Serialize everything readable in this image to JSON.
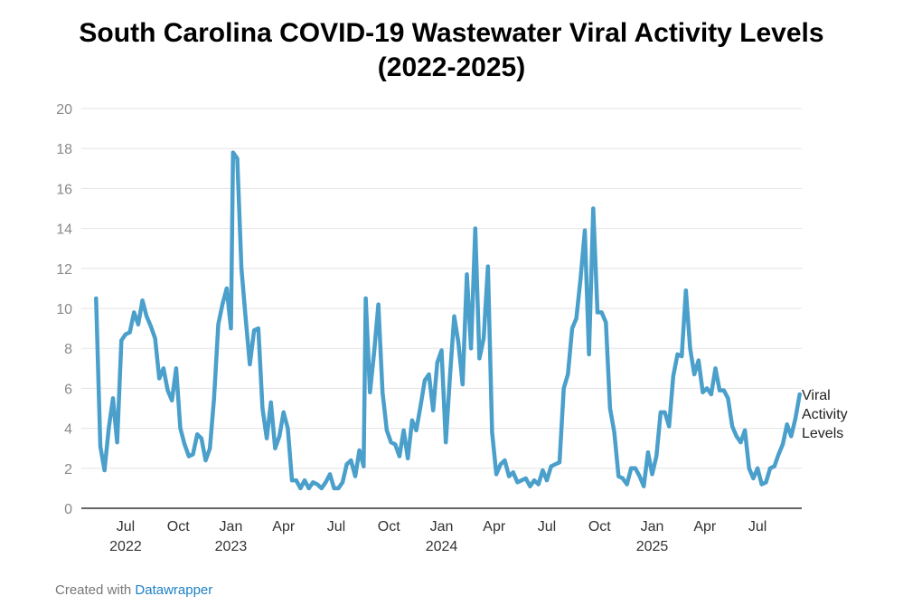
{
  "chart_data": {
    "type": "line",
    "title_lines": [
      "South Carolina COVID-19  Wastewater Viral Activity Levels",
      "(2022-2025)"
    ],
    "xlabel": "",
    "ylabel": "",
    "ylim": [
      0,
      20
    ],
    "yticks": [
      0,
      2,
      4,
      6,
      8,
      10,
      12,
      14,
      16,
      18,
      20
    ],
    "xlim": [
      2022.29,
      2025.71
    ],
    "x_ticks": [
      {
        "label": "Jul",
        "year": "2022",
        "x": 2022.5
      },
      {
        "label": "Oct",
        "year": "",
        "x": 2022.75
      },
      {
        "label": "Jan",
        "year": "2023",
        "x": 2023.0
      },
      {
        "label": "Apr",
        "year": "",
        "x": 2023.25
      },
      {
        "label": "Jul",
        "year": "",
        "x": 2023.5
      },
      {
        "label": "Oct",
        "year": "",
        "x": 2023.75
      },
      {
        "label": "Jan",
        "year": "2024",
        "x": 2024.0
      },
      {
        "label": "Apr",
        "year": "",
        "x": 2024.25
      },
      {
        "label": "Jul",
        "year": "",
        "x": 2024.5
      },
      {
        "label": "Oct",
        "year": "",
        "x": 2024.75
      },
      {
        "label": "Jan",
        "year": "2025",
        "x": 2025.0
      },
      {
        "label": "Apr",
        "year": "",
        "x": 2025.25
      },
      {
        "label": "Jul",
        "year": "",
        "x": 2025.5
      }
    ],
    "grid": true,
    "series": [
      {
        "name": "Viral Activity Levels",
        "legend_lines": [
          "Viral",
          "Activity",
          "Levels"
        ],
        "color": "#4a9fcb",
        "points": [
          [
            2022.36,
            10.5
          ],
          [
            2022.38,
            3.1
          ],
          [
            2022.4,
            1.9
          ],
          [
            2022.42,
            4.0
          ],
          [
            2022.44,
            5.5
          ],
          [
            2022.46,
            3.3
          ],
          [
            2022.48,
            8.4
          ],
          [
            2022.5,
            8.7
          ],
          [
            2022.52,
            8.8
          ],
          [
            2022.54,
            9.8
          ],
          [
            2022.56,
            9.2
          ],
          [
            2022.58,
            10.4
          ],
          [
            2022.6,
            9.6
          ],
          [
            2022.62,
            9.1
          ],
          [
            2022.64,
            8.5
          ],
          [
            2022.66,
            6.5
          ],
          [
            2022.68,
            7.0
          ],
          [
            2022.7,
            5.9
          ],
          [
            2022.72,
            5.4
          ],
          [
            2022.74,
            7.0
          ],
          [
            2022.76,
            4.0
          ],
          [
            2022.78,
            3.2
          ],
          [
            2022.8,
            2.6
          ],
          [
            2022.82,
            2.7
          ],
          [
            2022.84,
            3.7
          ],
          [
            2022.86,
            3.5
          ],
          [
            2022.88,
            2.4
          ],
          [
            2022.9,
            3.0
          ],
          [
            2022.92,
            5.5
          ],
          [
            2022.94,
            9.2
          ],
          [
            2022.96,
            10.2
          ],
          [
            2022.98,
            11.0
          ],
          [
            2023.0,
            9.0
          ],
          [
            2023.01,
            17.8
          ],
          [
            2023.03,
            17.5
          ],
          [
            2023.05,
            12.0
          ],
          [
            2023.07,
            9.5
          ],
          [
            2023.09,
            7.2
          ],
          [
            2023.11,
            8.9
          ],
          [
            2023.13,
            9.0
          ],
          [
            2023.15,
            5.0
          ],
          [
            2023.17,
            3.5
          ],
          [
            2023.19,
            5.3
          ],
          [
            2023.21,
            3.0
          ],
          [
            2023.23,
            3.6
          ],
          [
            2023.25,
            4.8
          ],
          [
            2023.27,
            4.0
          ],
          [
            2023.29,
            1.4
          ],
          [
            2023.31,
            1.4
          ],
          [
            2023.33,
            1.0
          ],
          [
            2023.35,
            1.4
          ],
          [
            2023.37,
            1.0
          ],
          [
            2023.39,
            1.3
          ],
          [
            2023.41,
            1.2
          ],
          [
            2023.43,
            1.0
          ],
          [
            2023.45,
            1.3
          ],
          [
            2023.47,
            1.7
          ],
          [
            2023.49,
            1.0
          ],
          [
            2023.51,
            1.0
          ],
          [
            2023.53,
            1.3
          ],
          [
            2023.55,
            2.2
          ],
          [
            2023.57,
            2.4
          ],
          [
            2023.59,
            1.6
          ],
          [
            2023.61,
            2.9
          ],
          [
            2023.63,
            2.1
          ],
          [
            2023.64,
            10.5
          ],
          [
            2023.66,
            5.8
          ],
          [
            2023.68,
            7.8
          ],
          [
            2023.7,
            10.2
          ],
          [
            2023.72,
            5.8
          ],
          [
            2023.74,
            3.9
          ],
          [
            2023.76,
            3.3
          ],
          [
            2023.78,
            3.2
          ],
          [
            2023.8,
            2.6
          ],
          [
            2023.82,
            3.9
          ],
          [
            2023.84,
            2.5
          ],
          [
            2023.86,
            4.4
          ],
          [
            2023.88,
            3.9
          ],
          [
            2023.9,
            5.1
          ],
          [
            2023.92,
            6.4
          ],
          [
            2023.94,
            6.7
          ],
          [
            2023.96,
            4.9
          ],
          [
            2023.98,
            7.3
          ],
          [
            2024.0,
            7.9
          ],
          [
            2024.02,
            3.3
          ],
          [
            2024.04,
            6.6
          ],
          [
            2024.06,
            9.6
          ],
          [
            2024.08,
            8.3
          ],
          [
            2024.1,
            6.2
          ],
          [
            2024.12,
            11.7
          ],
          [
            2024.14,
            8.0
          ],
          [
            2024.16,
            14.0
          ],
          [
            2024.18,
            7.5
          ],
          [
            2024.2,
            8.5
          ],
          [
            2024.22,
            12.1
          ],
          [
            2024.24,
            3.8
          ],
          [
            2024.26,
            1.7
          ],
          [
            2024.28,
            2.2
          ],
          [
            2024.3,
            2.4
          ],
          [
            2024.32,
            1.6
          ],
          [
            2024.34,
            1.8
          ],
          [
            2024.36,
            1.3
          ],
          [
            2024.38,
            1.4
          ],
          [
            2024.4,
            1.5
          ],
          [
            2024.42,
            1.1
          ],
          [
            2024.44,
            1.4
          ],
          [
            2024.46,
            1.2
          ],
          [
            2024.48,
            1.9
          ],
          [
            2024.5,
            1.4
          ],
          [
            2024.52,
            2.1
          ],
          [
            2024.54,
            2.2
          ],
          [
            2024.56,
            2.3
          ],
          [
            2024.58,
            6.0
          ],
          [
            2024.6,
            6.7
          ],
          [
            2024.62,
            9.0
          ],
          [
            2024.64,
            9.5
          ],
          [
            2024.66,
            11.5
          ],
          [
            2024.68,
            13.9
          ],
          [
            2024.7,
            7.7
          ],
          [
            2024.72,
            15.0
          ],
          [
            2024.74,
            9.8
          ],
          [
            2024.76,
            9.8
          ],
          [
            2024.78,
            9.3
          ],
          [
            2024.8,
            5.0
          ],
          [
            2024.82,
            3.8
          ],
          [
            2024.84,
            1.6
          ],
          [
            2024.86,
            1.5
          ],
          [
            2024.88,
            1.2
          ],
          [
            2024.9,
            2.0
          ],
          [
            2024.92,
            2.0
          ],
          [
            2024.94,
            1.6
          ],
          [
            2024.96,
            1.1
          ],
          [
            2024.98,
            2.8
          ],
          [
            2025.0,
            1.7
          ],
          [
            2025.02,
            2.6
          ],
          [
            2025.04,
            4.8
          ],
          [
            2025.06,
            4.8
          ],
          [
            2025.08,
            4.1
          ],
          [
            2025.1,
            6.6
          ],
          [
            2025.12,
            7.7
          ],
          [
            2025.14,
            7.6
          ],
          [
            2025.16,
            10.9
          ],
          [
            2025.18,
            8.0
          ],
          [
            2025.2,
            6.7
          ],
          [
            2025.22,
            7.4
          ],
          [
            2025.24,
            5.8
          ],
          [
            2025.26,
            6.0
          ],
          [
            2025.28,
            5.7
          ],
          [
            2025.3,
            7.0
          ],
          [
            2025.32,
            5.9
          ],
          [
            2025.34,
            5.9
          ],
          [
            2025.36,
            5.5
          ],
          [
            2025.38,
            4.1
          ],
          [
            2025.4,
            3.6
          ],
          [
            2025.42,
            3.3
          ],
          [
            2025.44,
            3.9
          ],
          [
            2025.46,
            2.0
          ],
          [
            2025.48,
            1.5
          ],
          [
            2025.5,
            2.0
          ],
          [
            2025.52,
            1.2
          ],
          [
            2025.54,
            1.3
          ],
          [
            2025.56,
            2.0
          ],
          [
            2025.58,
            2.1
          ],
          [
            2025.6,
            2.7
          ],
          [
            2025.62,
            3.2
          ],
          [
            2025.64,
            4.2
          ],
          [
            2025.66,
            3.6
          ],
          [
            2025.68,
            4.5
          ],
          [
            2025.7,
            5.7
          ]
        ]
      }
    ]
  },
  "footer": {
    "created_with": "Created with",
    "tool_name": "Datawrapper"
  }
}
